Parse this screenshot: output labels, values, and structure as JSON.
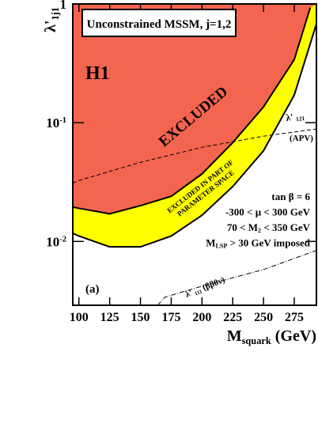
{
  "chart_data": {
    "type": "exclusion",
    "title": "Unconstrained MSSM, j=1,2",
    "experiment": "H1",
    "panel": "(a)",
    "xlabel": [
      "M",
      "squark",
      " (GeV)"
    ],
    "ylabel": [
      "λ'",
      "1j1"
    ],
    "xlim": [
      95,
      293
    ],
    "ylim": [
      0.0029,
      1
    ],
    "log_y": true,
    "xticks": [
      100,
      125,
      150,
      175,
      200,
      225,
      250,
      275
    ],
    "yticks": [
      {
        "value": 1,
        "label": [
          "1"
        ]
      },
      {
        "value": 0.1,
        "label": [
          "10",
          "-1"
        ]
      },
      {
        "value": 0.01,
        "label": [
          "10",
          "-2"
        ]
      }
    ],
    "regions": [
      {
        "label": [
          "EXCLUDED IN PART OF",
          "PARAMETER SPACE"
        ],
        "color": "#ffff00",
        "x": [
          95,
          100,
          125,
          150,
          175,
          200,
          225,
          250,
          275,
          293
        ],
        "values": [
          0.0117,
          0.0111,
          0.009,
          0.009,
          0.0111,
          0.0166,
          0.029,
          0.058,
          0.171,
          0.68
        ]
      },
      {
        "label": [
          "EXCLUDED"
        ],
        "color": "#f4654f",
        "x": [
          95,
          100,
          125,
          150,
          175,
          200,
          225,
          250,
          275,
          288
        ],
        "values": [
          0.0195,
          0.019,
          0.0171,
          0.02,
          0.024,
          0.037,
          0.068,
          0.136,
          0.34,
          0.93
        ]
      }
    ],
    "limits": [
      {
        "label": [
          "λ' ",
          "121"
        ],
        "note": "(APV)",
        "style": "dashed",
        "x": [
          95,
          100,
          150,
          200,
          250,
          293
        ],
        "values": [
          0.031,
          0.0326,
          0.0464,
          0.062,
          0.077,
          0.0885
        ]
      },
      {
        "label": [
          "λ' ",
          "111",
          " (ββ0ν)"
        ],
        "style": "dashdot",
        "x": [
          164,
          170,
          200,
          250,
          293
        ],
        "values": [
          0.0029,
          0.0034,
          0.0042,
          0.0058,
          0.0084
        ]
      }
    ],
    "annotations": [
      [
        "tan β = 6"
      ],
      [
        "-300 < μ < 300 GeV"
      ],
      [
        "70 < M",
        "2",
        " < 350 GeV"
      ],
      [
        "M",
        "LSP",
        " > 30 GeV imposed"
      ]
    ]
  }
}
